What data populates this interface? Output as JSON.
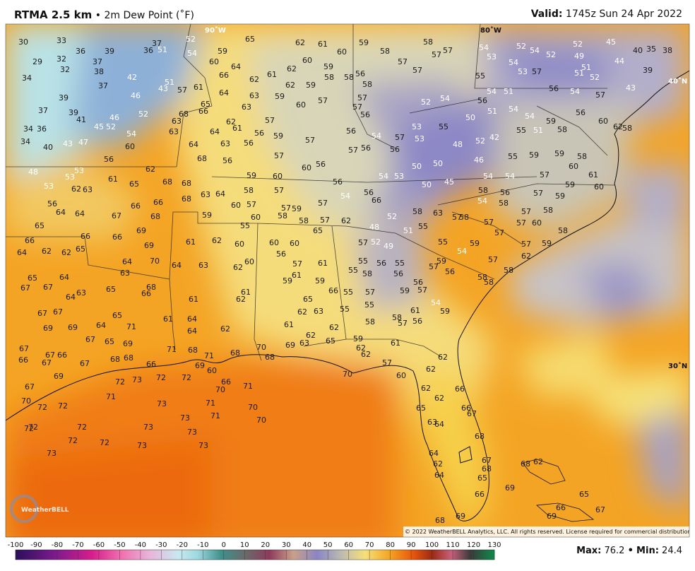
{
  "header": {
    "title": "RTMA 2.5 km",
    "subtitle": "• 2m Dew Point (˚F)",
    "valid_label": "Valid:",
    "valid_time": "1745z Sun 24 Apr 2022"
  },
  "map": {
    "graticule": [
      "90˚W",
      "80˚W",
      "40˚N",
      "30˚N"
    ],
    "copyright": "© 2022 WeatherBELL Analytics, LLC. All rights reserved. License required for commercial distribution.",
    "logo": "WeatherBELL",
    "station_values": [
      30,
      33,
      36,
      39,
      36,
      37,
      52,
      54,
      59,
      65,
      60,
      64,
      66,
      62,
      61,
      62,
      62,
      61,
      60,
      60,
      59,
      58,
      59,
      59,
      58,
      57,
      57,
      56,
      58,
      58,
      57,
      57,
      54,
      53,
      52,
      54,
      52,
      52,
      49,
      45,
      40,
      35,
      38,
      39,
      44,
      43,
      51,
      52,
      51,
      57,
      54,
      53,
      55,
      54,
      51,
      56,
      54,
      57,
      56,
      51,
      50,
      54,
      54,
      59,
      58,
      56,
      60,
      62,
      58,
      54,
      52,
      55,
      48,
      52,
      42,
      55,
      51,
      55,
      59,
      59,
      58,
      60,
      61,
      46,
      50,
      50,
      54,
      53,
      50,
      45,
      54,
      54,
      57,
      59,
      60,
      58,
      56,
      54,
      58,
      57,
      59,
      57,
      58,
      60,
      57,
      58,
      57,
      57,
      58,
      57,
      57,
      59,
      62,
      63,
      58,
      52,
      48,
      51,
      55,
      55,
      54,
      59,
      57,
      58,
      58,
      58,
      59,
      56,
      57,
      57,
      52,
      49,
      55,
      55,
      56,
      55,
      58,
      56,
      56,
      59,
      57,
      54,
      59,
      61,
      57,
      56,
      58,
      57,
      55,
      55,
      55,
      58,
      59,
      62,
      62,
      61,
      57,
      60,
      62,
      62,
      62,
      62,
      65,
      63,
      64,
      66,
      66,
      67,
      68,
      67,
      68,
      65,
      64,
      62,
      64,
      66,
      69,
      68,
      62,
      68,
      69,
      65,
      66,
      67,
      69,
      29,
      32,
      32,
      34,
      37,
      38,
      37,
      42,
      46,
      52,
      46,
      45,
      52,
      54,
      47,
      43,
      40,
      34,
      36,
      34,
      37,
      39,
      39,
      41,
      48,
      53,
      53,
      53,
      62,
      63,
      61,
      65,
      56,
      60,
      62,
      63,
      63,
      64,
      51,
      51,
      43,
      57,
      61,
      65,
      66,
      64,
      63,
      63,
      62,
      61,
      64,
      63,
      56,
      56,
      57,
      59,
      59,
      60,
      57,
      62,
      56,
      64,
      64,
      67,
      66,
      66,
      68,
      65,
      66,
      66,
      69,
      69,
      66,
      64,
      62,
      62,
      65,
      64,
      70,
      63,
      65,
      64,
      67,
      67,
      64,
      63,
      65,
      68,
      66,
      67,
      67,
      65,
      69,
      69,
      64,
      71,
      67,
      65,
      69,
      67,
      67,
      66,
      66,
      67,
      67,
      68,
      68,
      66,
      71,
      68,
      67,
      69,
      72,
      73,
      72,
      72,
      70,
      72,
      72,
      71,
      73,
      73,
      71,
      71,
      70,
      70,
      71,
      72,
      72,
      73,
      73,
      72,
      72,
      72,
      73,
      73,
      73,
      68,
      68,
      68,
      63,
      64,
      58,
      57,
      60,
      57,
      57,
      59,
      57,
      54,
      56,
      66,
      59,
      60,
      58,
      58,
      57,
      62,
      55,
      65,
      61,
      62,
      60,
      60,
      60,
      56,
      64,
      63,
      62,
      60,
      57,
      61,
      61,
      59,
      59,
      66,
      61,
      61,
      62,
      65,
      61,
      64,
      62,
      63,
      64,
      62,
      61,
      62,
      62,
      63,
      65,
      69,
      70,
      68,
      71,
      68,
      69,
      60,
      70,
      70,
      66,
      68,
      68,
      56,
      59,
      60,
      60,
      56,
      56,
      57,
      56,
      57,
      57,
      56,
      54,
      56,
      57,
      56,
      57,
      53,
      53,
      57,
      58
    ]
  },
  "legend": {
    "ticks": [
      -100,
      -90,
      -80,
      -70,
      -60,
      -50,
      -40,
      -30,
      -20,
      -10,
      0,
      10,
      20,
      30,
      40,
      50,
      60,
      70,
      80,
      90,
      100,
      110,
      120,
      130
    ]
  },
  "stats": {
    "max_label": "Max:",
    "max": 76.2,
    "separator": "•",
    "min_label": "Min:",
    "min": 24.4
  }
}
